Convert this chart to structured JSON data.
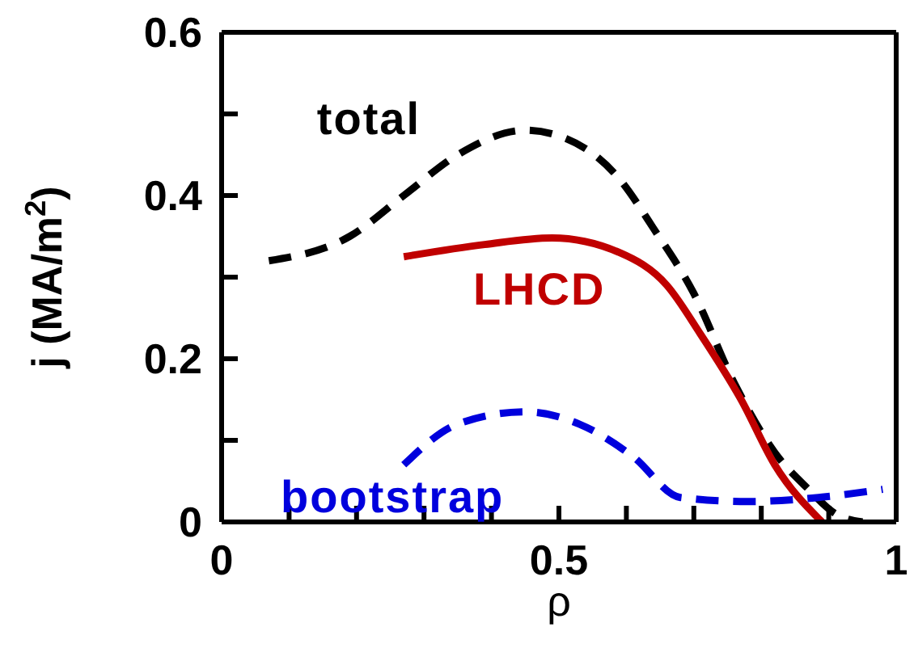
{
  "chart_data": {
    "type": "line",
    "xlabel": "ρ",
    "ylabel": "j (MA/m$^{2}$)",
    "xlim": [
      0,
      1
    ],
    "ylim": [
      0,
      0.6
    ],
    "xticks": [
      0,
      {
        "value": 0.1,
        "label": null
      },
      {
        "value": 0.2,
        "label": null
      },
      {
        "value": 0.3,
        "label": null
      },
      {
        "value": 0.4,
        "label": null
      },
      0.5,
      {
        "value": 0.6,
        "label": null
      },
      {
        "value": 0.7,
        "label": null
      },
      {
        "value": 0.8,
        "label": null
      },
      {
        "value": 0.9,
        "label": null
      },
      1
    ],
    "yticks": [
      0,
      {
        "value": 0.1,
        "label": null
      },
      0.2,
      {
        "value": 0.3,
        "label": null
      },
      0.4,
      {
        "value": 0.5,
        "label": null
      },
      0.6
    ],
    "grid": false,
    "legend": false,
    "marker": "none",
    "series": [
      {
        "name": "total",
        "color": "#000000",
        "line_style": "dashed",
        "x": [
          0.07,
          0.19,
          0.27,
          0.35,
          0.45,
          0.51,
          0.59,
          0.64,
          0.7,
          0.76,
          0.82,
          0.87,
          0.91,
          0.95
        ],
        "values": [
          0.32,
          0.35,
          0.4,
          0.45,
          0.48,
          0.47,
          0.42,
          0.36,
          0.28,
          0.17,
          0.085,
          0.04,
          0.01,
          0.0
        ]
      },
      {
        "name": "LHCD",
        "color": "#c00000",
        "line_style": "solid",
        "x": [
          0.27,
          0.39,
          0.49,
          0.59,
          0.66,
          0.71,
          0.77,
          0.82,
          0.89
        ],
        "values": [
          0.325,
          0.34,
          0.348,
          0.33,
          0.29,
          0.23,
          0.15,
          0.07,
          0.0
        ]
      },
      {
        "name": "bootstrap",
        "color": "#0000dd",
        "line_style": "dashed",
        "x": [
          0.27,
          0.35,
          0.45,
          0.53,
          0.61,
          0.68,
          0.78,
          0.885,
          0.98
        ],
        "values": [
          0.07,
          0.12,
          0.135,
          0.12,
          0.08,
          0.03,
          0.025,
          0.03,
          0.04
        ]
      }
    ]
  }
}
